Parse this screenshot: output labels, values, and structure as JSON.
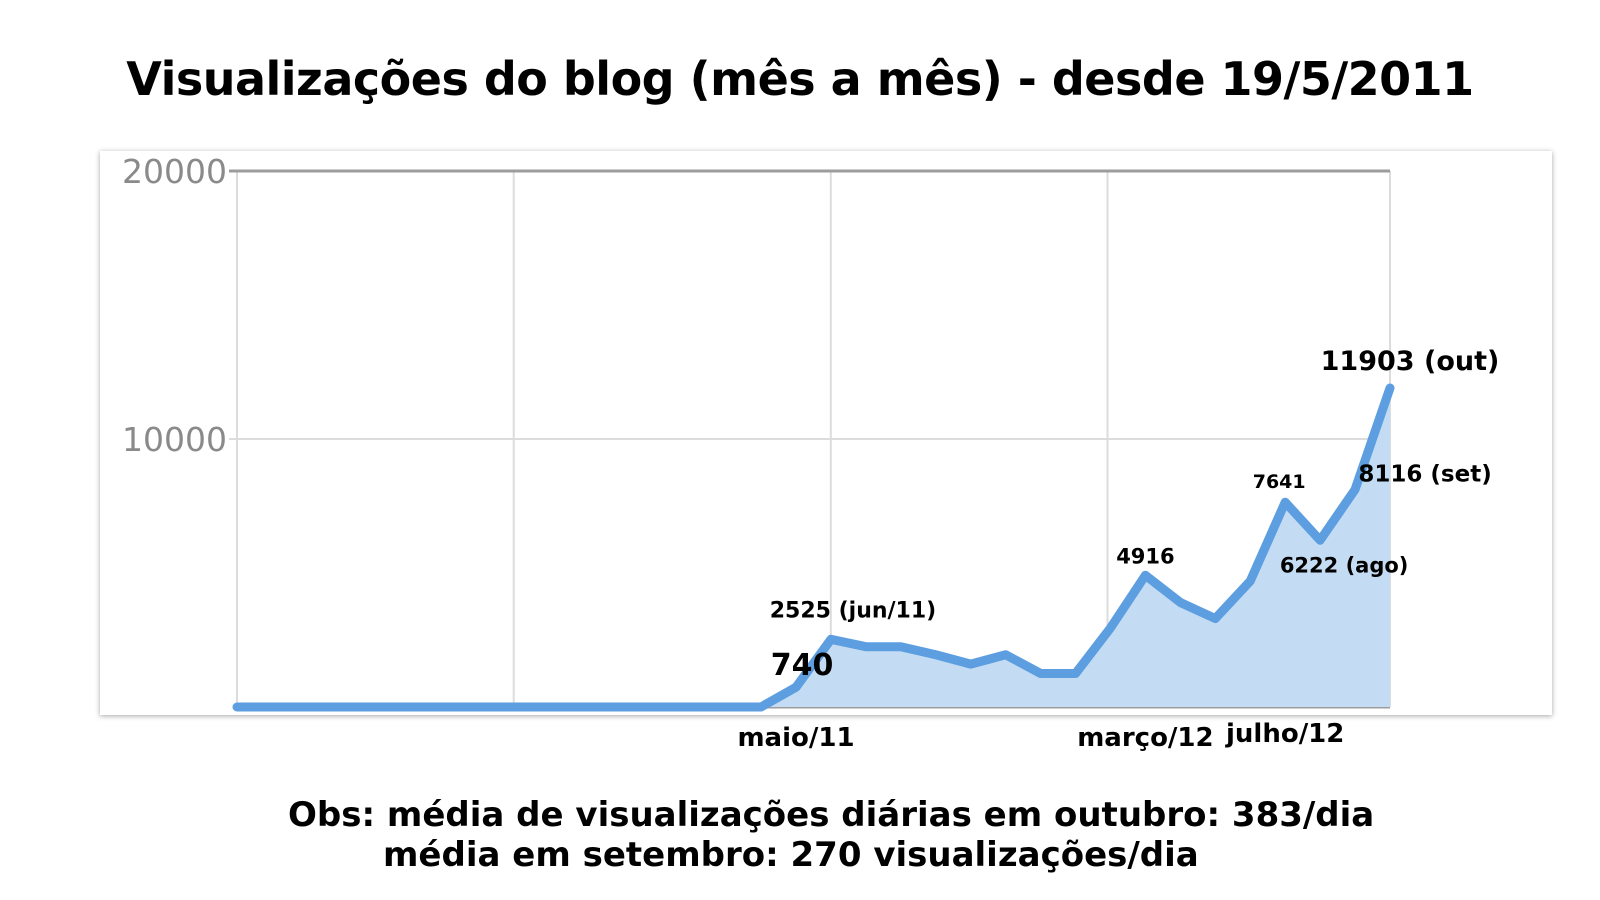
{
  "chart_data": {
    "type": "area",
    "title": "Visualizações do blog (mês a mês) - desde 19/5/2011",
    "ylim": [
      0,
      20000
    ],
    "y_ticks": [
      "20000",
      "10000"
    ],
    "grid": true,
    "x_labels": [
      {
        "month_index": 16,
        "label": "maio/11"
      },
      {
        "month_index": 26,
        "label": "março/12"
      },
      {
        "month_index": 30,
        "label": "julho/12"
      }
    ],
    "series": [
      {
        "color": "#5c9ee0",
        "fill": "#c4dcf3",
        "values": [
          0,
          0,
          0,
          0,
          0,
          0,
          0,
          0,
          0,
          0,
          0,
          0,
          0,
          0,
          0,
          0,
          740,
          2525,
          2250,
          2250,
          1950,
          1600,
          1950,
          1250,
          1250,
          2950,
          4916,
          3900,
          3300,
          4700,
          7641,
          6222,
          8116,
          11903
        ]
      }
    ],
    "annotations": [
      {
        "month_index": 16,
        "text": "740"
      },
      {
        "month_index": 17,
        "text": "2525 (jun/11)"
      },
      {
        "month_index": 26,
        "text": "4916"
      },
      {
        "month_index": 30,
        "text": "7641"
      },
      {
        "month_index": 31,
        "text": "6222 (ago)"
      },
      {
        "month_index": 32,
        "text": "8116 (set)"
      },
      {
        "month_index": 33,
        "text": "11903 (out)"
      }
    ]
  },
  "notes": {
    "line1": "Obs: média de visualizações diárias em outubro: 383/dia",
    "line2": "média em setembro: 270 visualizações/dia"
  }
}
